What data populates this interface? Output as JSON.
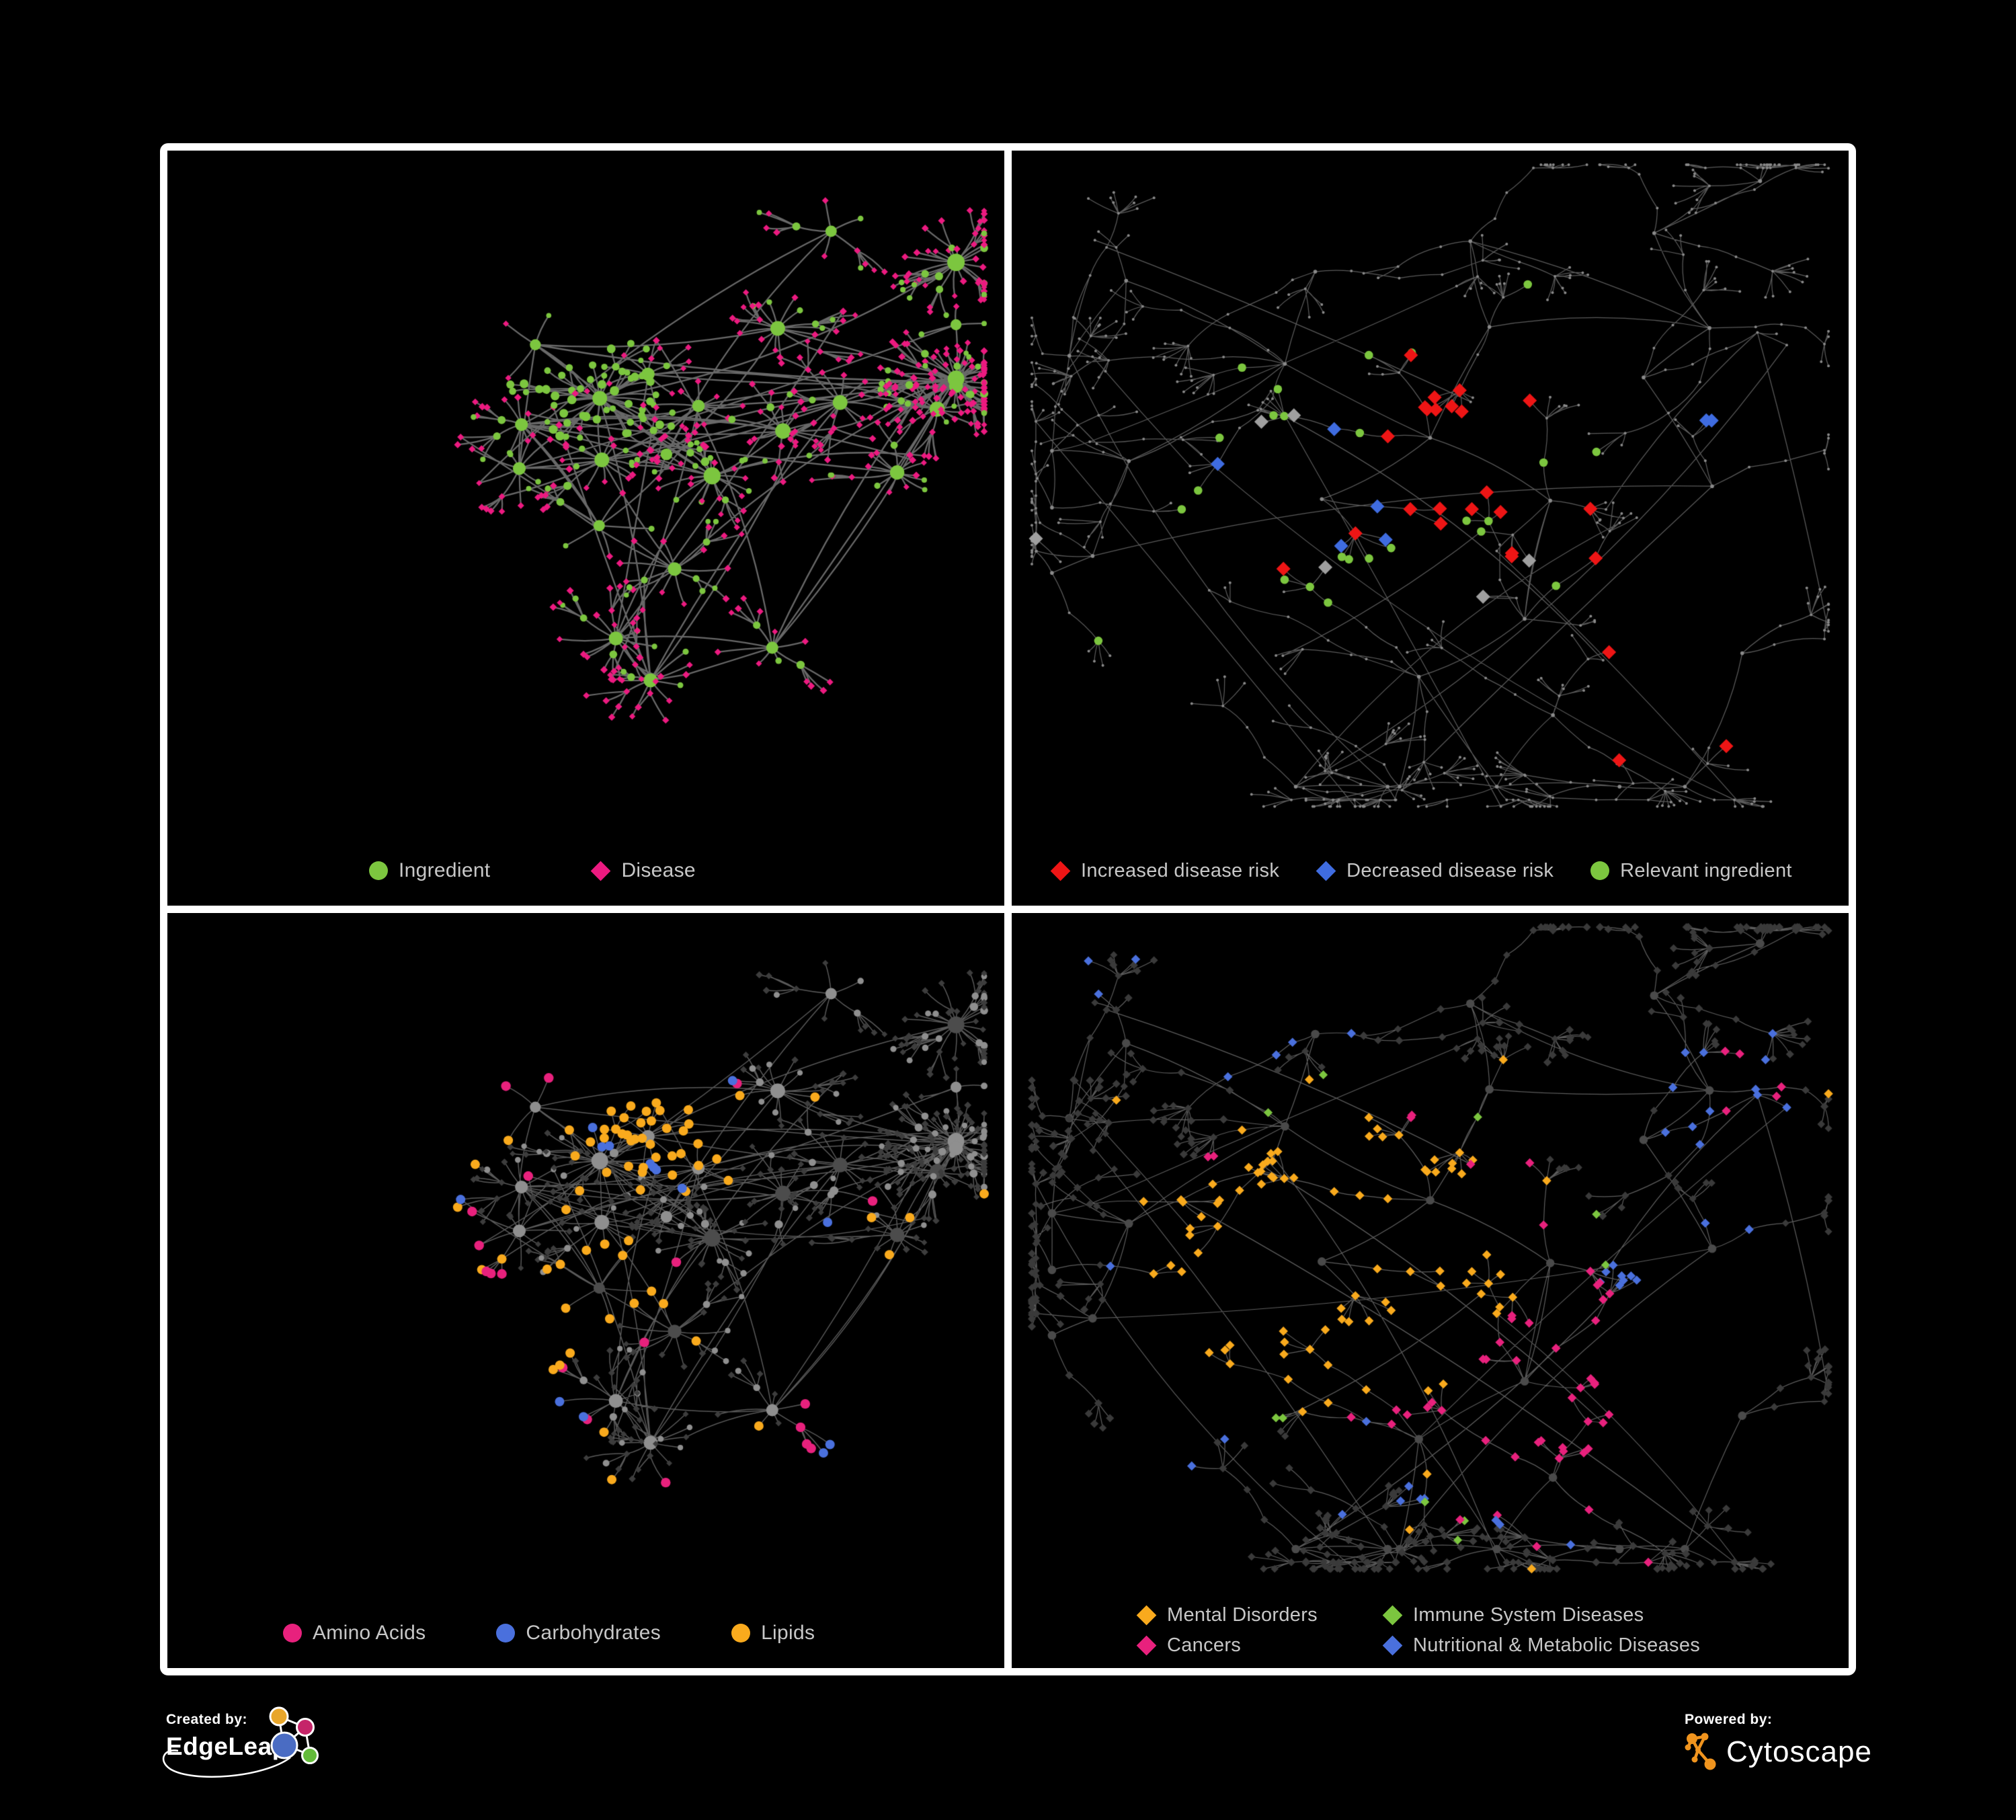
{
  "page": {
    "background": "#000000",
    "frame_color": "#ffffff",
    "legend_text_color": "#c7c7c7"
  },
  "panels": [
    {
      "id": "ingredient-disease",
      "legend": [
        {
          "label": "Ingredient",
          "shape": "circle",
          "color": "#7cc63f"
        },
        {
          "label": "Disease",
          "shape": "diamond",
          "color": "#ec1a80"
        }
      ],
      "network": {
        "kind": "dense",
        "seed": 7,
        "edge": {
          "color": "#6e6e6e",
          "width": 2.3,
          "alpha": 0.95
        },
        "base": {
          "green": "#7cc63f",
          "pink": "#ec1a80"
        },
        "highlights": []
      }
    },
    {
      "id": "disease-risk",
      "legend": [
        {
          "label": "Increased disease risk",
          "shape": "diamond",
          "color": "#ee1515"
        },
        {
          "label": "Decreased disease risk",
          "shape": "diamond",
          "color": "#3f6ce0"
        },
        {
          "label": "Relevant ingredient",
          "shape": "circle",
          "color": "#7cc63f"
        }
      ],
      "network": {
        "kind": "sparse",
        "seed": 99,
        "edge": {
          "color": "#646464",
          "width": 1.25,
          "alpha": 0.9
        },
        "base": {
          "node": "#8a8a8a"
        },
        "highlights": [
          {
            "shape": "diamond",
            "color": "#ee1515",
            "r": 10.5,
            "groups": [
              [
                0.42,
                0.44,
                0.07,
                0.075,
                15,
                1
              ],
              [
                0.56,
                0.5,
                0.05,
                0.05,
                5,
                1
              ],
              [
                0.77,
                0.83,
                0.03,
                0.03,
                3,
                0
              ],
              [
                0.31,
                0.55,
                0.02,
                0.02,
                2,
                0
              ]
            ]
          },
          {
            "shape": "diamond",
            "color": "#3f6ce0",
            "r": 10.5,
            "groups": [
              [
                0.3,
                0.52,
                0.03,
                0.05,
                5,
                1
              ],
              [
                0.895,
                0.385,
                0.012,
                0.008,
                2,
                0
              ]
            ]
          },
          {
            "shape": "diamond",
            "color": "#9f9f9f",
            "r": 10.5,
            "groups": [
              [
                0.45,
                0.55,
                0.17,
                0.12,
                6,
                0
              ]
            ]
          },
          {
            "shape": "circle",
            "color": "#7cc63f",
            "r": 6.3,
            "groups": [
              [
                0.42,
                0.46,
                0.1,
                0.085,
                15,
                1
              ],
              [
                0.53,
                0.3,
                0.09,
                0.05,
                4,
                0
              ],
              [
                0.5,
                0.62,
                0.22,
                0.18,
                6,
                0
              ]
            ]
          }
        ]
      }
    },
    {
      "id": "ingredient-classes",
      "legend": [
        {
          "label": "Amino Acids",
          "shape": "circle",
          "color": "#e8217d"
        },
        {
          "label": "Carbohydrates",
          "shape": "circle",
          "color": "#4a70dd"
        },
        {
          "label": "Lipids",
          "shape": "circle",
          "color": "#f9aa1d"
        }
      ],
      "network": {
        "kind": "dense",
        "seed": 7,
        "edge": {
          "color": "#8f8f8f",
          "width": 1.5,
          "alpha": 0.62
        },
        "base": {
          "circle": "#8f8f8f",
          "circleDark": "#4c4c4c",
          "diamond": "#3d3d3d"
        },
        "highlights": [
          {
            "shape": "circle",
            "color": "#f9aa1d",
            "r": 7,
            "groups": [
              [
                0.55,
                0.33,
                0.05,
                0.045,
                38,
                1
              ],
              [
                0.55,
                0.58,
                0.02,
                0.016,
                7,
                1
              ],
              [
                0.5,
                0.52,
                0.2,
                0.14,
                20,
                0
              ],
              [
                0.84,
                0.44,
                0.05,
                0.08,
                4,
                0
              ]
            ]
          },
          {
            "shape": "circle",
            "color": "#4a70dd",
            "r": 7,
            "groups": [
              [
                0.55,
                0.3,
                0.05,
                0.04,
                8,
                1
              ],
              [
                0.5,
                0.6,
                0.22,
                0.18,
                5,
                0
              ],
              [
                0.08,
                0.4,
                0.01,
                0.01,
                1,
                0
              ]
            ]
          },
          {
            "shape": "circle",
            "color": "#e8217d",
            "r": 7.2,
            "groups": [
              [
                0.45,
                0.62,
                0.22,
                0.16,
                12,
                0
              ],
              [
                0.84,
                0.76,
                0.06,
                0.05,
                4,
                0
              ],
              [
                0.42,
                0.2,
                0.09,
                0.05,
                3,
                0
              ]
            ]
          }
        ]
      }
    },
    {
      "id": "disease-classes",
      "legend": [
        {
          "label": "Mental Disorders",
          "shape": "diamond",
          "color": "#f9aa1d"
        },
        {
          "label": "Immune System Diseases",
          "shape": "diamond",
          "color": "#7cc63f"
        },
        {
          "label": "Cancers",
          "shape": "diamond",
          "color": "#e8217d"
        },
        {
          "label": "Nutritional & Metabolic Diseases",
          "shape": "diamond",
          "color": "#4a70dd"
        }
      ],
      "network": {
        "kind": "sparse",
        "seed": 99,
        "edge": {
          "color": "#6d6d6d",
          "width": 1.2,
          "alpha": 0.85
        },
        "base": {
          "node": "#3a3a3a",
          "hub": "#4a4a4a"
        },
        "highlights": [
          {
            "shape": "diamond",
            "color": "#f9aa1d",
            "r": 6.8,
            "groups": [
              [
                0.28,
                0.56,
                0.05,
                0.05,
                55,
                1
              ],
              [
                0.28,
                0.56,
                0.11,
                0.09,
                25,
                1
              ],
              [
                0.45,
                0.3,
                0.18,
                0.1,
                7,
                0
              ],
              [
                0.52,
                0.9,
                0.08,
                0.04,
                3,
                0
              ]
            ]
          },
          {
            "shape": "diamond",
            "color": "#e8217d",
            "r": 6.8,
            "groups": [
              [
                0.51,
                0.66,
                0.06,
                0.055,
                40,
                1
              ],
              [
                0.47,
                0.4,
                0.07,
                0.07,
                7,
                0
              ],
              [
                0.9,
                0.235,
                0.025,
                0.03,
                5,
                0
              ],
              [
                0.62,
                0.92,
                0.1,
                0.04,
                3,
                0
              ]
            ]
          },
          {
            "shape": "diamond",
            "color": "#4a70dd",
            "r": 6.8,
            "groups": [
              [
                0.83,
                0.3,
                0.05,
                0.06,
                12,
                1
              ],
              [
                0.67,
                0.73,
                0.045,
                0.04,
                10,
                1
              ],
              [
                0.34,
                0.12,
                0.18,
                0.07,
                7,
                0
              ],
              [
                0.85,
                0.55,
                0.07,
                0.09,
                5,
                0
              ],
              [
                0.46,
                0.94,
                0.14,
                0.04,
                4,
                0
              ],
              [
                0.14,
                0.74,
                0.06,
                0.06,
                3,
                0
              ]
            ]
          },
          {
            "shape": "diamond",
            "color": "#7cc63f",
            "r": 6.6,
            "groups": [
              [
                0.5,
                0.5,
                0.18,
                0.18,
                8,
                0
              ],
              [
                0.52,
                0.9,
                0.05,
                0.03,
                2,
                0
              ]
            ]
          }
        ]
      }
    }
  ],
  "footer": {
    "created_by_label": "Created by:",
    "created_by_name": "EdgeLeap",
    "powered_by_label": "Powered by:",
    "powered_by_name": "Cytoscape",
    "edgeleap_colors": {
      "orange": "#e8a62b",
      "magenta": "#c52569",
      "blue": "#4a6cc3",
      "green": "#63bb3a"
    },
    "cytoscape_orange": "#f0941e"
  }
}
